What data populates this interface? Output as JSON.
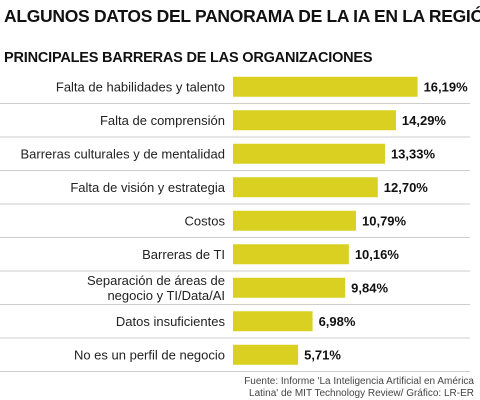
{
  "header": {
    "title": "ALGUNOS DATOS DEL PANORAMA DE LA IA EN LA REGIÓN",
    "subtitle": "PRINCIPALES BARRERAS DE LAS ORGANIZACIONES"
  },
  "chart_data": {
    "type": "bar",
    "orientation": "horizontal",
    "categories": [
      [
        "Falta de habilidades y talento"
      ],
      [
        "Falta de comprensión"
      ],
      [
        "Barreras culturales y de mentalidad"
      ],
      [
        "Falta de visión y estrategia"
      ],
      [
        "Costos"
      ],
      [
        "Barreras de TI"
      ],
      [
        "Separación de áreas de",
        "negocio y TI/Data/AI"
      ],
      [
        "Datos insuficientes"
      ],
      [
        "No es un perfil de negocio"
      ]
    ],
    "values": [
      16.19,
      14.29,
      13.33,
      12.7,
      10.79,
      10.16,
      9.84,
      6.98,
      5.71
    ],
    "value_labels": [
      "16,19%",
      "14,29%",
      "13,33%",
      "12,70%",
      "10,79%",
      "10,16%",
      "9,84%",
      "6,98%",
      "5,71%"
    ],
    "bar_color": "#d9d021",
    "separator_color": "#bdbdbd",
    "grid": false
  },
  "footer": {
    "source_line1": "Fuente: Informe 'La Inteligencia Artificial en América",
    "source_line2": "Latina' de MIT Technology Review/ Gráfico: LR-ER"
  }
}
